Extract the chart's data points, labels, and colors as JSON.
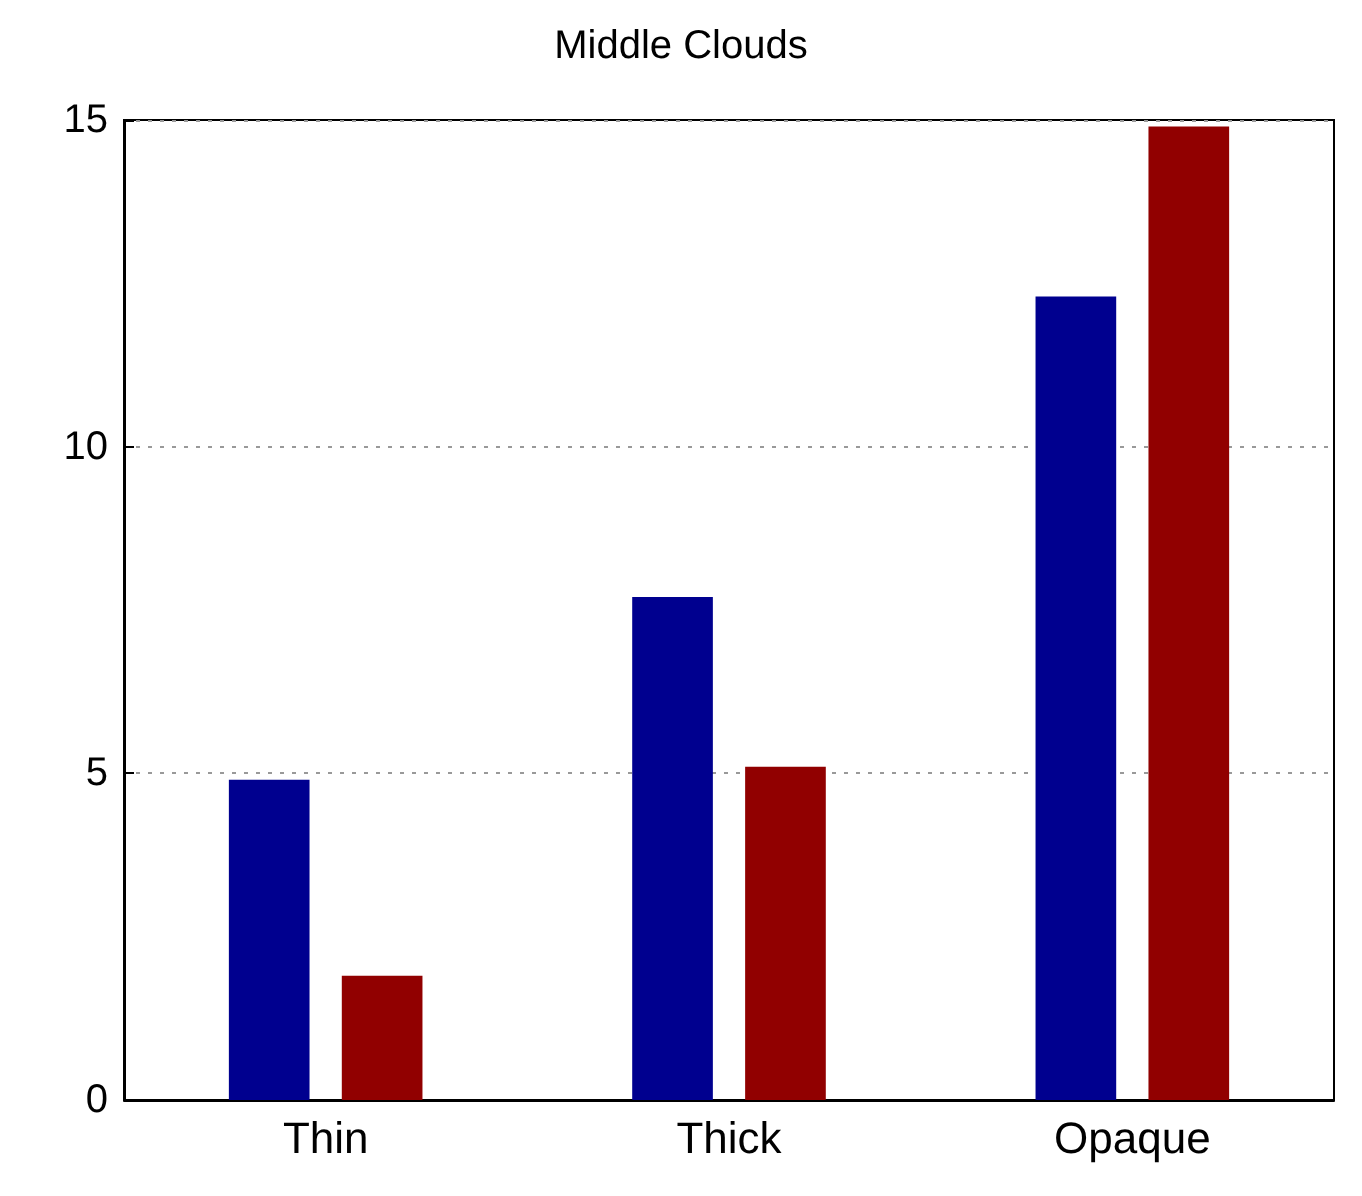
{
  "chart_data": {
    "type": "bar",
    "title": "Middle Clouds",
    "categories": [
      "Thin",
      "Thick",
      "Opaque"
    ],
    "series": [
      {
        "color": "#00008f",
        "values": [
          4.9,
          7.7,
          12.3
        ]
      },
      {
        "color": "#910000",
        "values": [
          1.9,
          5.1,
          14.9
        ]
      }
    ],
    "ylim": [
      0,
      15
    ],
    "yticks": [
      0,
      5,
      10,
      15
    ],
    "grid": "y"
  }
}
